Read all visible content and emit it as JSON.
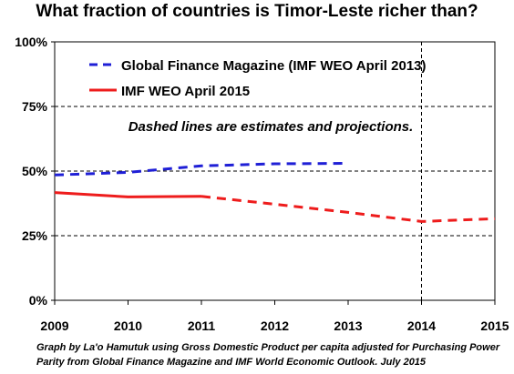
{
  "chart_data": {
    "type": "line",
    "title": "What fraction of countries is Timor-Leste richer than?",
    "x_ticks": [
      "2009",
      "2010",
      "2011",
      "2012",
      "2013",
      "2014",
      "2015"
    ],
    "y_ticks": [
      "100%",
      "75%",
      "50%",
      "25%",
      "0%"
    ],
    "ylim": [
      0,
      100
    ],
    "xlim": [
      2009,
      2015
    ],
    "grid": "horizontal dashed at 25% intervals",
    "legend_placement": "top-left",
    "annotation": "Dashed lines are estimates and projections.",
    "series": [
      {
        "name": "Global Finance Magazine (IMF WEO April 2013)",
        "color": "#1f1fd6",
        "solid_points": [],
        "dashed_points": [
          [
            2009,
            48.5
          ],
          [
            2010,
            49.5
          ],
          [
            2011,
            52
          ],
          [
            2012,
            52.8
          ],
          [
            2013,
            53
          ]
        ]
      },
      {
        "name": "IMF WEO April 2015",
        "color": "#ee1c1c",
        "solid_points": [
          [
            2009,
            41.7
          ],
          [
            2010,
            40
          ],
          [
            2011,
            40.2
          ]
        ],
        "dashed_points": [
          [
            2011,
            40.2
          ],
          [
            2012,
            37.2
          ],
          [
            2013,
            34
          ],
          [
            2014,
            30.5
          ],
          [
            2015,
            31.6
          ]
        ]
      }
    ]
  },
  "caption": "Graph by La'o Hamutuk using Gross Domestic Product per capita adjusted for Purchasing Power Parity from Global Finance Magazine and IMF World Economic Outlook. July 2015"
}
